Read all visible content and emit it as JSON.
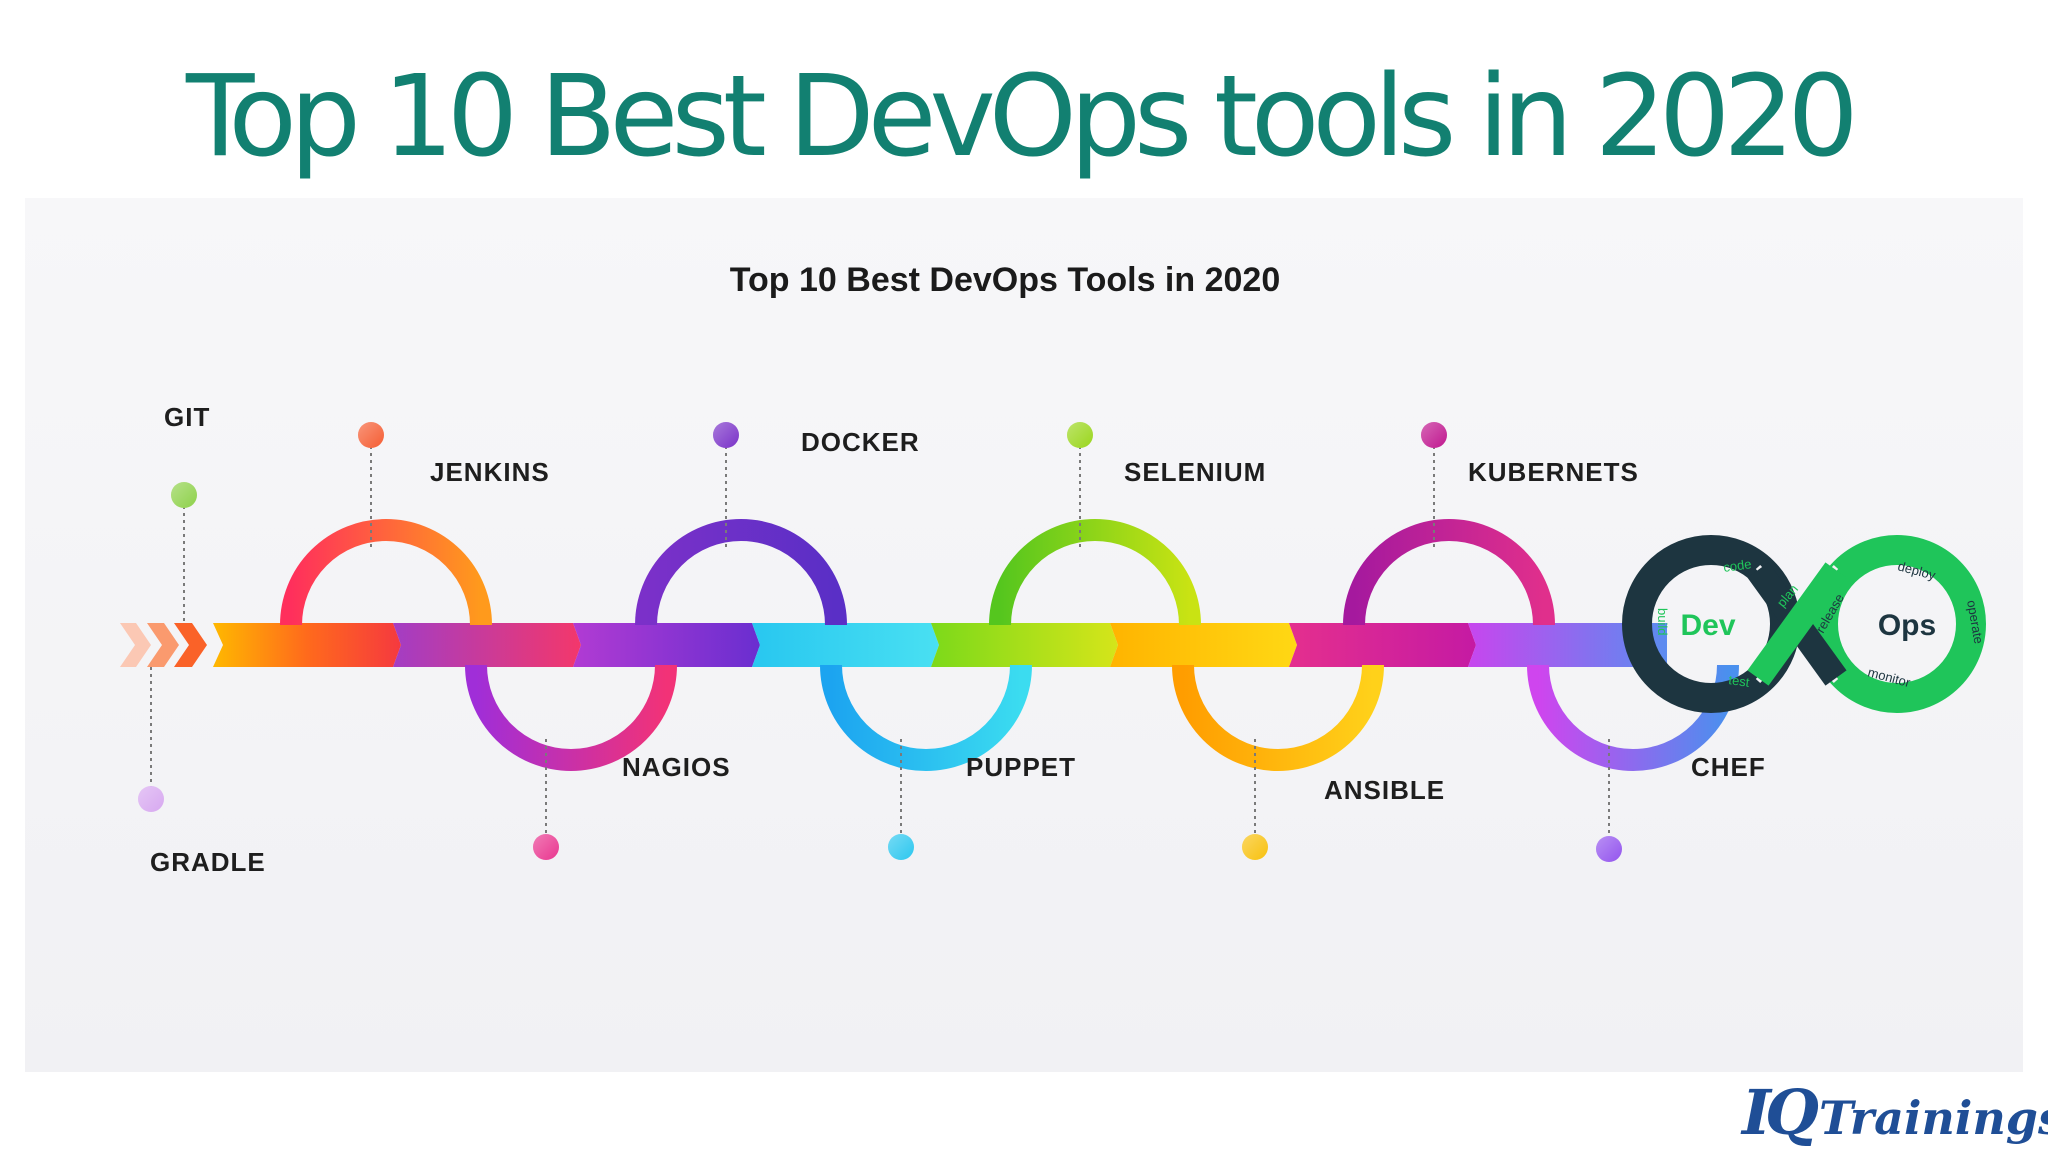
{
  "slide": {
    "title": "Top 10 Best DevOps tools in 2020"
  },
  "figure": {
    "title": "Top 10 Best DevOps Tools in 2020",
    "tools": [
      {
        "name": "GRADLE",
        "position": "below",
        "color": "#d7a8f0"
      },
      {
        "name": "GIT",
        "position": "above",
        "color": "#8ed14a"
      },
      {
        "name": "JENKINS",
        "position": "above",
        "color": "#f55d33"
      },
      {
        "name": "NAGIOS",
        "position": "below",
        "color": "#e9368f"
      },
      {
        "name": "DOCKER",
        "position": "above",
        "color": "#7a32c8"
      },
      {
        "name": "PUPPET",
        "position": "below",
        "color": "#2cc7ef"
      },
      {
        "name": "SELENIUM",
        "position": "above",
        "color": "#9ad61c"
      },
      {
        "name": "ANSIBLE",
        "position": "below",
        "color": "#f8c10e"
      },
      {
        "name": "KUBERNETS",
        "position": "above",
        "color": "#c0178f"
      },
      {
        "name": "CHEF",
        "position": "below",
        "color": "#9354ee"
      }
    ],
    "devops_logo": {
      "left_word": "Dev",
      "right_word": "Ops",
      "steps": [
        "plan",
        "code",
        "build",
        "test",
        "release",
        "deploy",
        "operate",
        "monitor"
      ],
      "dark_color": "#1d3540",
      "green_color": "#1fc55a"
    }
  },
  "brand": {
    "part1": "IQ",
    "part2": "Trainings",
    "color": "#1f4e96"
  }
}
